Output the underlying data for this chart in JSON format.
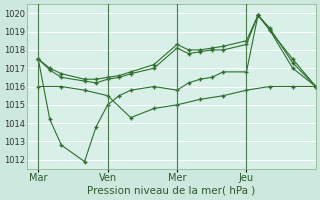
{
  "background_color": "#cce8df",
  "plot_bg_color": "#d8f0e8",
  "grid_color": "#ffffff",
  "line_color": "#2d6e2d",
  "title": "Pression niveau de la mer( hPa )",
  "ylim": [
    1011.5,
    1020.5
  ],
  "yticks": [
    1012,
    1013,
    1014,
    1015,
    1016,
    1017,
    1018,
    1019,
    1020
  ],
  "xtick_labels": [
    "Mar",
    "Ven",
    "Mer",
    "Jeu"
  ],
  "xtick_positions": [
    0,
    36,
    72,
    108
  ],
  "vline_positions": [
    0,
    36,
    72,
    108
  ],
  "total_hours": 144,
  "series": [
    {
      "x": [
        0,
        6,
        12,
        24,
        30,
        36,
        42,
        48,
        60,
        72,
        78,
        84,
        90,
        96,
        108,
        114,
        120,
        132,
        144
      ],
      "y": [
        1017.5,
        1017.0,
        1016.7,
        1016.4,
        1016.4,
        1016.5,
        1016.6,
        1016.8,
        1017.2,
        1018.3,
        1018.0,
        1018.0,
        1018.1,
        1018.2,
        1018.5,
        1019.9,
        1019.1,
        1017.5,
        1016.0
      ]
    },
    {
      "x": [
        0,
        6,
        12,
        24,
        30,
        36,
        42,
        48,
        60,
        72,
        78,
        84,
        90,
        96,
        108,
        114,
        120,
        132,
        144
      ],
      "y": [
        1017.5,
        1016.9,
        1016.5,
        1016.3,
        1016.2,
        1016.4,
        1016.5,
        1016.7,
        1017.0,
        1018.1,
        1017.8,
        1017.9,
        1018.0,
        1018.0,
        1018.3,
        1019.9,
        1019.2,
        1017.3,
        1016.0
      ]
    },
    {
      "x": [
        0,
        6,
        12,
        24,
        30,
        36,
        42,
        48,
        60,
        72,
        78,
        84,
        90,
        96,
        108,
        114,
        120,
        132,
        144
      ],
      "y": [
        1017.5,
        1014.2,
        1012.8,
        1011.9,
        1013.8,
        1015.0,
        1015.5,
        1015.8,
        1016.0,
        1015.8,
        1016.2,
        1016.4,
        1016.5,
        1016.8,
        1016.8,
        1019.9,
        1019.1,
        1017.0,
        1016.0
      ]
    },
    {
      "x": [
        0,
        12,
        24,
        36,
        48,
        60,
        72,
        84,
        96,
        108,
        120,
        132,
        144
      ],
      "y": [
        1016.0,
        1016.0,
        1015.8,
        1015.5,
        1014.3,
        1014.8,
        1015.0,
        1015.3,
        1015.5,
        1015.8,
        1016.0,
        1016.0,
        1016.0
      ]
    }
  ]
}
